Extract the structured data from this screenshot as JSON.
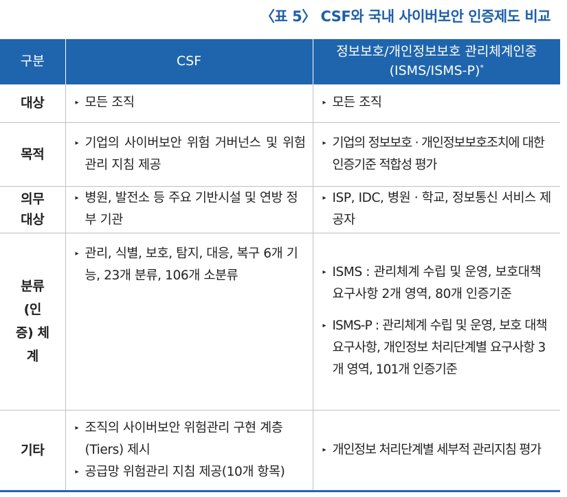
{
  "title": "〈표 5〉 CSF와 국내 사이버보안 인증제도 비교",
  "header": {
    "col1": "구분",
    "col2": "CSF",
    "col3_line1": "정보보호/개인정보보호 관리체계인증",
    "col3_line2": "(ISMS/ISMS-P)",
    "col3_mark": "*"
  },
  "bullet": "▸",
  "rows": [
    {
      "label": "대상",
      "csf": [
        "모든 조직"
      ],
      "isms": [
        "모든 조직"
      ]
    },
    {
      "label": "목적",
      "csf": [
        "기업의 사이버보안 위험 거버넌스 및 위험 관리 지침 제공"
      ],
      "isms": [
        "기업의 정보보호 · 개인정보보호조치에 대한 인증기준 적합성 평가"
      ]
    },
    {
      "label": "의무 대상",
      "csf": [
        "병원, 발전소 등 주요 기반시설 및 연방 정부 기관"
      ],
      "isms": [
        "ISP, IDC, 병원 · 학교, 정보통신 서비스 제공자"
      ]
    },
    {
      "label": "분류 (인증) 체계",
      "csf": [
        "관리, 식별, 보호, 탐지, 대응, 복구 6개 기능, 23개 분류, 106개 소분류"
      ],
      "isms": [
        "ISMS : 관리체계 수립 및 운영, 보호대책 요구사항 2개 영역, 80개 인증기준",
        "ISMS-P : 관리체계 수립 및 운영, 보호 대책 요구사항, 개인정보 처리단계별 요구사항 3개 영역, 101개 인증기준"
      ]
    },
    {
      "label": "기타",
      "csf": [
        "조직의 사이버보안 위험관리 구현 계층 (Tiers) 제시",
        "공급망 위험관리 지침 제공(10개 항목)"
      ],
      "isms": [
        "개인정보 처리단계별 세부적 관리지침 평가"
      ]
    }
  ]
}
